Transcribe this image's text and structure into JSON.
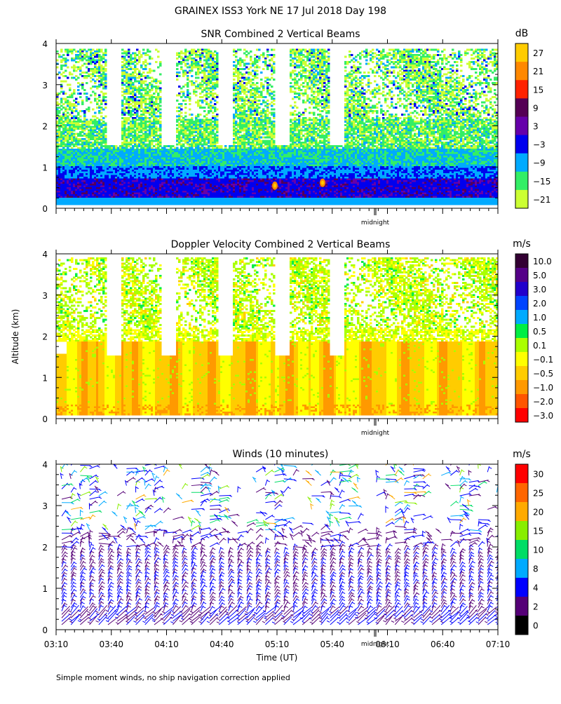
{
  "title": "GRAINEX ISS3 York NE  17 Jul 2018 Day 198",
  "ylabel": "Altitude (km)",
  "xlabel": "Time (UT)",
  "footnote": "Simple moment winds, no ship navigation correction applied",
  "midnight_label": "midnight",
  "chart_data": [
    {
      "type": "heatmap",
      "id": "snr",
      "title": "SNR Combined 2 Vertical Beams",
      "ylabel": "Altitude (km)",
      "y_ticks": [
        "0",
        "1",
        "2",
        "3",
        "4"
      ],
      "ylim": [
        0,
        4
      ],
      "colorbar": {
        "unit": "dB",
        "labels": [
          "27",
          "21",
          "15",
          "9",
          "3",
          "−3",
          "−9",
          "−15",
          "−21"
        ],
        "colors": [
          "#ffcc00",
          "#ff8800",
          "#ff2200",
          "#550055",
          "#6600aa",
          "#0000ee",
          "#00aaff",
          "#33ee66",
          "#ccff33"
        ]
      }
    },
    {
      "type": "heatmap",
      "id": "doppler",
      "title": "Doppler Velocity Combined 2 Vertical Beams",
      "ylabel": "Altitude (km)",
      "y_ticks": [
        "0",
        "1",
        "2",
        "3",
        "4"
      ],
      "ylim": [
        0,
        4
      ],
      "colorbar": {
        "unit": "m/s",
        "labels": [
          "10.0",
          "5.0",
          "3.0",
          "2.0",
          "1.0",
          "0.5",
          "0.1",
          "−0.1",
          "−0.5",
          "−1.0",
          "−2.0",
          "−3.0"
        ],
        "colors": [
          "#330033",
          "#550088",
          "#2200cc",
          "#0044ff",
          "#00aaff",
          "#00ee44",
          "#aaff00",
          "#ffff00",
          "#ffcc00",
          "#ff9900",
          "#ff5500",
          "#ff0000"
        ]
      }
    },
    {
      "type": "scatter",
      "id": "winds",
      "title": "Winds (10 minutes)",
      "ylabel": "Altitude (km)",
      "y_ticks": [
        "0",
        "1",
        "2",
        "3",
        "4"
      ],
      "ylim": [
        0,
        4
      ],
      "x_ticks": [
        "03:10",
        "03:40",
        "04:10",
        "04:40",
        "05:10",
        "05:40",
        "06:10",
        "06:40",
        "07:10"
      ],
      "colorbar": {
        "unit": "m/s",
        "labels": [
          "30",
          "25",
          "20",
          "15",
          "10",
          "8",
          "4",
          "2",
          "0"
        ],
        "colors": [
          "#ff0000",
          "#ff6600",
          "#ffaa00",
          "#88ee00",
          "#00dd66",
          "#00aaff",
          "#0000ff",
          "#550077",
          "#000000"
        ]
      }
    }
  ]
}
